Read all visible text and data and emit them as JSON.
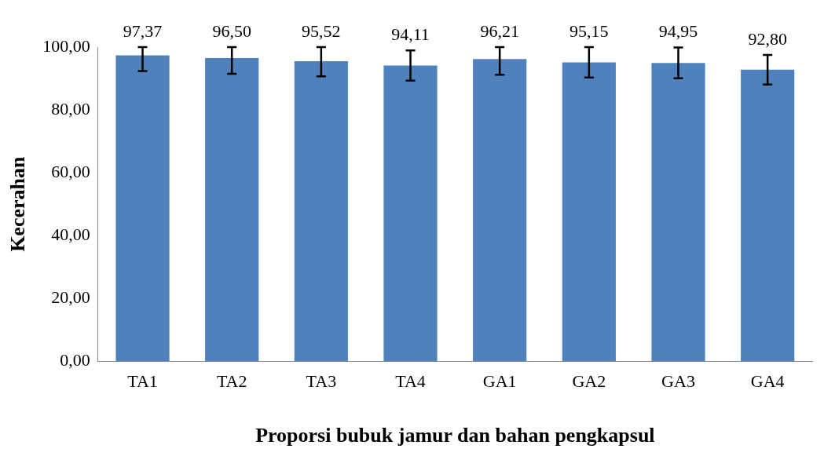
{
  "chart_data": {
    "type": "bar",
    "xlabel": "Proporsi bubuk jamur dan bahan pengkapsul",
    "ylabel": "Kecerahan",
    "categories": [
      "TA1",
      "TA2",
      "TA3",
      "TA4",
      "GA1",
      "GA2",
      "GA3",
      "GA4"
    ],
    "values": [
      97.37,
      96.5,
      95.52,
      94.11,
      96.21,
      95.15,
      94.95,
      92.8
    ],
    "errors": [
      [
        92.4,
        100
      ],
      [
        91.5,
        100
      ],
      [
        90.7,
        100
      ],
      4.8,
      [
        91.2,
        100
      ],
      4.85,
      4.9,
      4.7
    ],
    "value_labels": [
      "97,37",
      "96,50",
      "95,52",
      "94,11",
      "96,21",
      "95,15",
      "94,95",
      "92,80"
    ],
    "color": "#4f81bd",
    "ylim": [
      0,
      100
    ],
    "yticks": [
      {
        "value": 0,
        "label": "0,00"
      },
      {
        "value": 20,
        "label": "20,00"
      },
      {
        "value": 40,
        "label": "40,00"
      },
      {
        "value": 60,
        "label": "60,00"
      },
      {
        "value": 80,
        "label": "80,00"
      },
      {
        "value": 100,
        "label": "100,00"
      }
    ],
    "grid": false,
    "legend": false
  }
}
